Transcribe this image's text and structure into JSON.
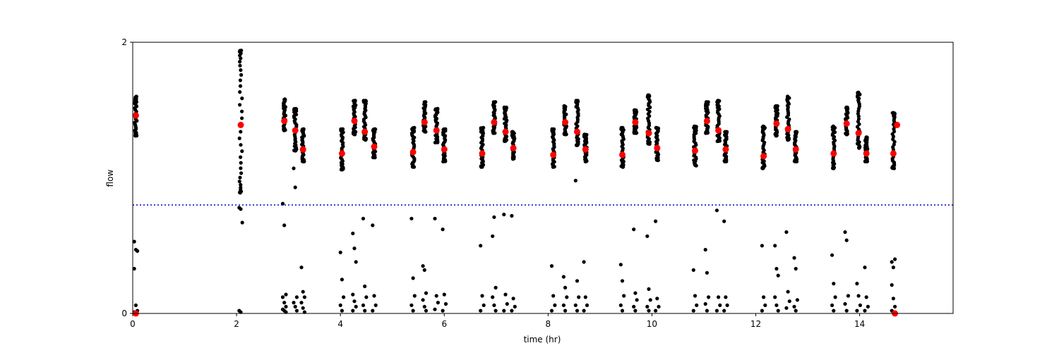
{
  "chart_data": {
    "type": "scatter",
    "title": "",
    "xlabel": "time (hr)",
    "ylabel": "flow",
    "xlim": [
      0,
      15.8
    ],
    "ylim": [
      0,
      2
    ],
    "xticks": [
      0,
      2,
      4,
      6,
      8,
      10,
      12,
      14
    ],
    "xtick_labels": [
      "0",
      "2",
      "4",
      "6",
      "8",
      "10",
      "12",
      "14"
    ],
    "yticks": [
      0,
      2
    ],
    "ytick_labels": [
      "0",
      "2"
    ],
    "grid": false,
    "legend": "none",
    "threshold_line": {
      "y": 0.8,
      "style": "dotted",
      "color": "#0000cc"
    },
    "colors": {
      "raw_points": "#000000",
      "means": "#ff0000",
      "axes": "#000000"
    },
    "series": [
      {
        "role": "raw-samples",
        "clusters": [
          {
            "x": 0.06,
            "y_min": 1.31,
            "y_max": 1.6,
            "lows": [
              0.53,
              0.47,
              0.46,
              0.33,
              0.06,
              0.02,
              0.01,
              0.0
            ]
          },
          {
            "x": 2.08,
            "y_min": 0.89,
            "y_max": 1.94,
            "lows": [
              0.78,
              0.77,
              0.67,
              0.02,
              0.01
            ]
          },
          {
            "x": 2.92,
            "y_min": 1.35,
            "y_max": 1.58,
            "lows": [
              0.81,
              0.65,
              0.14,
              0.12,
              0.08,
              0.05,
              0.03,
              0.02,
              0.01
            ]
          },
          {
            "x": 3.13,
            "y_min": 1.2,
            "y_max": 1.51,
            "lows": [
              1.07,
              0.93,
              0.12,
              0.08,
              0.05,
              0.02
            ]
          },
          {
            "x": 3.28,
            "y_min": 1.12,
            "y_max": 1.36,
            "lows": [
              0.34,
              0.16,
              0.12,
              0.08,
              0.04,
              0.01
            ]
          },
          {
            "x": 4.03,
            "y_min": 1.06,
            "y_max": 1.36,
            "lows": [
              0.45,
              0.25,
              0.12,
              0.06,
              0.02
            ]
          },
          {
            "x": 4.27,
            "y_min": 1.32,
            "y_max": 1.57,
            "lows": [
              0.59,
              0.48,
              0.38,
              0.14,
              0.09,
              0.05,
              0.02
            ]
          },
          {
            "x": 4.47,
            "y_min": 1.28,
            "y_max": 1.57,
            "lows": [
              0.7,
              0.2,
              0.12,
              0.06,
              0.02
            ]
          },
          {
            "x": 4.65,
            "y_min": 1.15,
            "y_max": 1.36,
            "lows": [
              0.65,
              0.13,
              0.06,
              0.02
            ]
          },
          {
            "x": 5.4,
            "y_min": 1.08,
            "y_max": 1.37,
            "lows": [
              0.7,
              0.26,
              0.13,
              0.06,
              0.02
            ]
          },
          {
            "x": 5.62,
            "y_min": 1.34,
            "y_max": 1.56,
            "lows": [
              0.35,
              0.32,
              0.15,
              0.1,
              0.05,
              0.02
            ]
          },
          {
            "x": 5.85,
            "y_min": 1.26,
            "y_max": 1.51,
            "lows": [
              0.7,
              0.13,
              0.08,
              0.03
            ]
          },
          {
            "x": 6.0,
            "y_min": 1.12,
            "y_max": 1.36,
            "lows": [
              0.62,
              0.14,
              0.07,
              0.02
            ]
          },
          {
            "x": 6.73,
            "y_min": 1.08,
            "y_max": 1.37,
            "lows": [
              0.5,
              0.13,
              0.06,
              0.02
            ]
          },
          {
            "x": 6.96,
            "y_min": 1.33,
            "y_max": 1.56,
            "lows": [
              0.57,
              0.71,
              0.19,
              0.12,
              0.06,
              0.02
            ]
          },
          {
            "x": 7.18,
            "y_min": 1.27,
            "y_max": 1.52,
            "lows": [
              0.73,
              0.14,
              0.07,
              0.02
            ]
          },
          {
            "x": 7.33,
            "y_min": 1.14,
            "y_max": 1.34,
            "lows": [
              0.72,
              0.11,
              0.05,
              0.02
            ]
          },
          {
            "x": 8.1,
            "y_min": 1.08,
            "y_max": 1.36,
            "lows": [
              0.35,
              0.13,
              0.06,
              0.02
            ]
          },
          {
            "x": 8.33,
            "y_min": 1.32,
            "y_max": 1.53,
            "lows": [
              0.27,
              0.19,
              0.12,
              0.06,
              0.02
            ]
          },
          {
            "x": 8.56,
            "y_min": 1.24,
            "y_max": 1.57,
            "lows": [
              0.98,
              0.24,
              0.12,
              0.06,
              0.02
            ]
          },
          {
            "x": 8.72,
            "y_min": 1.12,
            "y_max": 1.32,
            "lows": [
              0.38,
              0.12,
              0.06,
              0.02
            ]
          },
          {
            "x": 9.43,
            "y_min": 1.08,
            "y_max": 1.37,
            "lows": [
              0.36,
              0.24,
              0.13,
              0.06,
              0.02
            ]
          },
          {
            "x": 9.68,
            "y_min": 1.33,
            "y_max": 1.5,
            "lows": [
              0.62,
              0.15,
              0.1,
              0.05,
              0.02
            ]
          },
          {
            "x": 9.94,
            "y_min": 1.25,
            "y_max": 1.61,
            "lows": [
              0.57,
              0.18,
              0.1,
              0.05,
              0.02
            ]
          },
          {
            "x": 10.1,
            "y_min": 1.13,
            "y_max": 1.37,
            "lows": [
              0.68,
              0.11,
              0.05,
              0.02
            ]
          },
          {
            "x": 10.83,
            "y_min": 1.09,
            "y_max": 1.38,
            "lows": [
              0.32,
              0.13,
              0.06,
              0.02
            ]
          },
          {
            "x": 11.06,
            "y_min": 1.33,
            "y_max": 1.56,
            "lows": [
              0.47,
              0.3,
              0.12,
              0.07,
              0.02
            ]
          },
          {
            "x": 11.28,
            "y_min": 1.27,
            "y_max": 1.57,
            "lows": [
              0.76,
              0.12,
              0.06,
              0.02
            ]
          },
          {
            "x": 11.42,
            "y_min": 1.12,
            "y_max": 1.34,
            "lows": [
              0.68,
              0.12,
              0.06,
              0.02
            ]
          },
          {
            "x": 12.15,
            "y_min": 1.07,
            "y_max": 1.38,
            "lows": [
              0.5,
              0.12,
              0.06,
              0.02
            ]
          },
          {
            "x": 12.4,
            "y_min": 1.31,
            "y_max": 1.53,
            "lows": [
              0.5,
              0.33,
              0.28,
              0.12,
              0.06,
              0.02
            ]
          },
          {
            "x": 12.62,
            "y_min": 1.28,
            "y_max": 1.6,
            "lows": [
              0.6,
              0.16,
              0.09,
              0.04
            ]
          },
          {
            "x": 12.77,
            "y_min": 1.12,
            "y_max": 1.34,
            "lows": [
              0.41,
              0.33,
              0.1,
              0.05,
              0.02
            ]
          },
          {
            "x": 13.5,
            "y_min": 1.07,
            "y_max": 1.38,
            "lows": [
              0.43,
              0.22,
              0.12,
              0.06,
              0.02
            ]
          },
          {
            "x": 13.75,
            "y_min": 1.32,
            "y_max": 1.52,
            "lows": [
              0.6,
              0.54,
              0.13,
              0.07,
              0.02
            ]
          },
          {
            "x": 13.98,
            "y_min": 1.22,
            "y_max": 1.63,
            "lows": [
              0.22,
              0.13,
              0.06,
              0.02
            ]
          },
          {
            "x": 14.13,
            "y_min": 1.12,
            "y_max": 1.3,
            "lows": [
              0.34,
              0.12,
              0.05,
              0.02
            ]
          },
          {
            "x": 14.65,
            "y_min": 1.07,
            "y_max": 1.48,
            "lows": [
              0.38,
              0.34,
              0.4,
              0.21,
              0.11,
              0.05,
              0.02,
              0.01,
              0.0
            ]
          }
        ]
      },
      {
        "role": "cluster-means",
        "points": [
          {
            "x": 0.06,
            "y": 1.46
          },
          {
            "x": 0.06,
            "y": 0.0
          },
          {
            "x": 2.08,
            "y": 1.39
          },
          {
            "x": 2.92,
            "y": 1.42
          },
          {
            "x": 3.13,
            "y": 1.35
          },
          {
            "x": 3.28,
            "y": 1.21
          },
          {
            "x": 4.03,
            "y": 1.18
          },
          {
            "x": 4.27,
            "y": 1.42
          },
          {
            "x": 4.47,
            "y": 1.34
          },
          {
            "x": 4.65,
            "y": 1.23
          },
          {
            "x": 5.4,
            "y": 1.19
          },
          {
            "x": 5.62,
            "y": 1.41
          },
          {
            "x": 5.85,
            "y": 1.35
          },
          {
            "x": 6.0,
            "y": 1.21
          },
          {
            "x": 6.73,
            "y": 1.18
          },
          {
            "x": 6.96,
            "y": 1.41
          },
          {
            "x": 7.18,
            "y": 1.34
          },
          {
            "x": 7.33,
            "y": 1.22
          },
          {
            "x": 8.1,
            "y": 1.17
          },
          {
            "x": 8.33,
            "y": 1.41
          },
          {
            "x": 8.56,
            "y": 1.34
          },
          {
            "x": 8.72,
            "y": 1.21
          },
          {
            "x": 9.43,
            "y": 1.17
          },
          {
            "x": 9.68,
            "y": 1.41
          },
          {
            "x": 9.94,
            "y": 1.33
          },
          {
            "x": 10.1,
            "y": 1.22
          },
          {
            "x": 10.83,
            "y": 1.2
          },
          {
            "x": 11.06,
            "y": 1.42
          },
          {
            "x": 11.28,
            "y": 1.35
          },
          {
            "x": 11.42,
            "y": 1.21
          },
          {
            "x": 12.15,
            "y": 1.16
          },
          {
            "x": 12.4,
            "y": 1.4
          },
          {
            "x": 12.62,
            "y": 1.36
          },
          {
            "x": 12.77,
            "y": 1.21
          },
          {
            "x": 13.5,
            "y": 1.18
          },
          {
            "x": 13.75,
            "y": 1.4
          },
          {
            "x": 13.98,
            "y": 1.33
          },
          {
            "x": 14.13,
            "y": 1.18
          },
          {
            "x": 14.65,
            "y": 1.18
          },
          {
            "x": 14.72,
            "y": 1.39
          },
          {
            "x": 14.68,
            "y": 0.0
          }
        ]
      }
    ]
  }
}
